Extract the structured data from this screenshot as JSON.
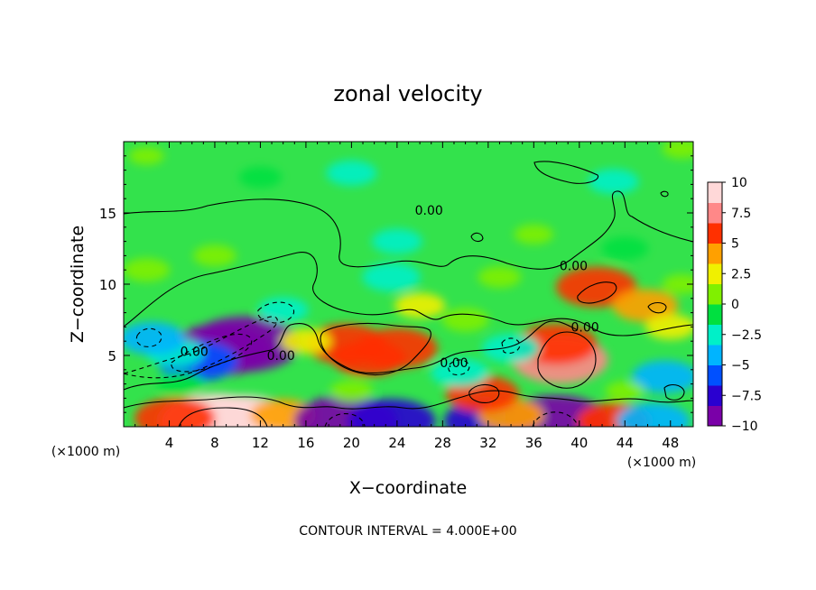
{
  "chart_data": {
    "type": "heatmap",
    "title": "zonal velocity",
    "xlabel": "X−coordinate",
    "ylabel": "Z−coordinate",
    "x_unit_left": "(×1000 m)",
    "x_unit_right": "(×1000 m)",
    "footer": "CONTOUR INTERVAL = 4.000E+00",
    "xlim": [
      0,
      50
    ],
    "ylim": [
      0,
      20
    ],
    "x_ticks": [
      4,
      8,
      12,
      16,
      20,
      24,
      28,
      32,
      36,
      40,
      44,
      48
    ],
    "x_tick_labels": [
      "4",
      "8",
      "12",
      "16",
      "20",
      "24",
      "28",
      "32",
      "36",
      "40",
      "44",
      "48"
    ],
    "y_ticks": [
      5,
      10,
      15
    ],
    "y_tick_labels": [
      "5",
      "10",
      "15"
    ],
    "colorbar": {
      "min": -10,
      "max": 10,
      "ticks": [
        10,
        7.5,
        5,
        2.5,
        0,
        -2.5,
        -5,
        -7.5,
        -10
      ],
      "tick_labels": [
        "10",
        "7.5",
        "5",
        "2.5",
        "0",
        "−2.5",
        "−5",
        "−7.5",
        "−10"
      ],
      "colors": [
        "#7a00a8",
        "#2a00d0",
        "#0050ff",
        "#00b4ff",
        "#00f0c8",
        "#00e040",
        "#80f000",
        "#f0f000",
        "#ffa000",
        "#ff3000",
        "#ff8888",
        "#ffd8d8"
      ]
    },
    "contour_labels": [
      {
        "text": "0.00",
        "x": 13.8,
        "y": 5.0
      },
      {
        "text": "0.00",
        "x": 26.8,
        "y": 15.2
      },
      {
        "text": "0.00",
        "x": 6.2,
        "y": 5.3
      },
      {
        "text": "0.00",
        "x": 29.0,
        "y": 4.5
      },
      {
        "text": "0.00",
        "x": 39.5,
        "y": 11.3
      },
      {
        "text": "0.00",
        "x": 40.5,
        "y": 7.0
      }
    ],
    "features": [
      {
        "x": 8.5,
        "y": 5.4,
        "value": -9
      },
      {
        "x": 10.6,
        "y": 5.8,
        "value": -10
      },
      {
        "x": 6.5,
        "y": 4.6,
        "value": -6
      },
      {
        "x": 4.5,
        "y": 5.2,
        "value": -3
      },
      {
        "x": 14.0,
        "y": 8.2,
        "value": -2
      },
      {
        "x": 2.5,
        "y": 6.2,
        "value": -4
      },
      {
        "x": 8.0,
        "y": 0.4,
        "value": 10
      },
      {
        "x": 10.5,
        "y": 0.4,
        "value": 9
      },
      {
        "x": 4.5,
        "y": 0.6,
        "value": 6
      },
      {
        "x": 14.0,
        "y": 0.8,
        "value": 4
      },
      {
        "x": 19.5,
        "y": 0.4,
        "value": -9
      },
      {
        "x": 23.5,
        "y": 0.4,
        "value": -7
      },
      {
        "x": 32.0,
        "y": 0.4,
        "value": -7
      },
      {
        "x": 38.0,
        "y": 0.4,
        "value": -9
      },
      {
        "x": 43.0,
        "y": 0.4,
        "value": 5
      },
      {
        "x": 46.5,
        "y": 0.4,
        "value": -5
      },
      {
        "x": 34.0,
        "y": 0.8,
        "value": 4
      },
      {
        "x": 19.5,
        "y": 5.8,
        "value": 6
      },
      {
        "x": 24.0,
        "y": 5.5,
        "value": 6
      },
      {
        "x": 21.5,
        "y": 4.8,
        "value": 5
      },
      {
        "x": 38.3,
        "y": 4.7,
        "value": 8
      },
      {
        "x": 38.0,
        "y": 5.8,
        "value": 6
      },
      {
        "x": 31.5,
        "y": 2.3,
        "value": 5
      },
      {
        "x": 41.5,
        "y": 9.8,
        "value": 6
      },
      {
        "x": 45.8,
        "y": 8.5,
        "value": 4
      },
      {
        "x": 48.0,
        "y": 7.0,
        "value": 2
      },
      {
        "x": 29.5,
        "y": 3.8,
        "value": -3
      },
      {
        "x": 34.0,
        "y": 5.5,
        "value": -3
      },
      {
        "x": 47.5,
        "y": 3.5,
        "value": -4
      },
      {
        "x": 23.5,
        "y": 10.5,
        "value": -3
      },
      {
        "x": 24.0,
        "y": 13.0,
        "value": -2
      },
      {
        "x": 20.0,
        "y": 17.8,
        "value": -2
      },
      {
        "x": 12.0,
        "y": 17.5,
        "value": -1
      },
      {
        "x": 43.0,
        "y": 17.2,
        "value": -2
      },
      {
        "x": 2.0,
        "y": 11.0,
        "value": 1.5
      },
      {
        "x": 8.0,
        "y": 12.0,
        "value": 1
      },
      {
        "x": 33.0,
        "y": 10.5,
        "value": 1
      },
      {
        "x": 26.0,
        "y": 8.5,
        "value": 2
      },
      {
        "x": 16.0,
        "y": 6.0,
        "value": 2
      },
      {
        "x": 30.0,
        "y": 7.5,
        "value": 1.5
      },
      {
        "x": 5.0,
        "y": 3.0,
        "value": -1.5
      },
      {
        "x": 20.0,
        "y": 2.5,
        "value": 1
      },
      {
        "x": 44.0,
        "y": 2.5,
        "value": 0.5
      },
      {
        "x": 36.0,
        "y": 13.5,
        "value": 0.5
      },
      {
        "x": 44.0,
        "y": 12.5,
        "value": -1.5
      },
      {
        "x": 49.0,
        "y": 10.0,
        "value": 0.5
      },
      {
        "x": 49.0,
        "y": 19.5,
        "value": 0.5
      },
      {
        "x": 2.0,
        "y": 19.0,
        "value": 0
      }
    ]
  }
}
